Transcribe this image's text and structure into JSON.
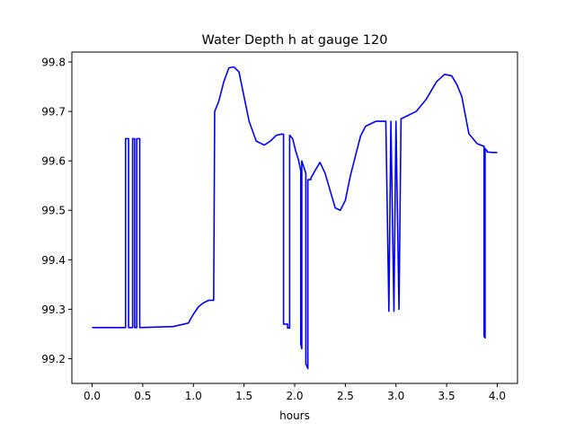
{
  "chart_data": {
    "type": "line",
    "title": "Water Depth h at gauge 120",
    "xlabel": "hours",
    "ylabel": "",
    "xlim": [
      -0.2,
      4.2
    ],
    "ylim": [
      99.15,
      99.82
    ],
    "xticks": [
      0.0,
      0.5,
      1.0,
      1.5,
      2.0,
      2.5,
      3.0,
      3.5,
      4.0
    ],
    "xtick_labels": [
      "0.0",
      "0.5",
      "1.0",
      "1.5",
      "2.0",
      "2.5",
      "3.0",
      "3.5",
      "4.0"
    ],
    "yticks": [
      99.2,
      99.3,
      99.4,
      99.5,
      99.6,
      99.7,
      99.8
    ],
    "ytick_labels": [
      "99.2",
      "99.3",
      "99.4",
      "99.5",
      "99.6",
      "99.7",
      "99.8"
    ],
    "grid": false,
    "legend": "none",
    "series": [
      {
        "color": "#0000ff",
        "x": [
          0.0,
          0.33,
          0.33,
          0.36,
          0.36,
          0.4,
          0.4,
          0.42,
          0.42,
          0.44,
          0.44,
          0.47,
          0.47,
          0.8,
          0.95,
          1.0,
          1.05,
          1.1,
          1.15,
          1.2,
          1.21,
          1.21,
          1.25,
          1.3,
          1.35,
          1.4,
          1.45,
          1.48,
          1.55,
          1.62,
          1.7,
          1.76,
          1.82,
          1.87,
          1.89,
          1.89,
          1.93,
          1.93,
          1.95,
          1.95,
          1.98,
          2.01,
          2.04,
          2.06,
          2.06,
          2.07,
          2.07,
          2.11,
          2.11,
          2.13,
          2.13,
          2.16,
          2.16,
          2.2,
          2.25,
          2.3,
          2.35,
          2.4,
          2.45,
          2.5,
          2.55,
          2.6,
          2.65,
          2.7,
          2.8,
          2.9,
          2.93,
          2.93,
          2.95,
          2.95,
          2.98,
          2.98,
          3.0,
          3.0,
          3.03,
          3.03,
          3.05,
          3.1,
          3.2,
          3.3,
          3.4,
          3.48,
          3.55,
          3.6,
          3.65,
          3.72,
          3.8,
          3.86,
          3.87,
          3.87,
          3.88,
          3.88,
          3.9,
          3.9,
          3.95,
          4.0
        ],
        "y": [
          99.263,
          99.263,
          99.645,
          99.645,
          99.263,
          99.263,
          99.645,
          99.645,
          99.263,
          99.263,
          99.645,
          99.645,
          99.263,
          99.265,
          99.272,
          99.29,
          99.305,
          99.313,
          99.318,
          99.318,
          99.7,
          99.7,
          99.72,
          99.76,
          99.788,
          99.79,
          99.78,
          99.75,
          99.68,
          99.64,
          99.632,
          99.64,
          99.652,
          99.654,
          99.654,
          99.27,
          99.27,
          99.262,
          99.262,
          99.652,
          99.645,
          99.62,
          99.6,
          99.58,
          99.23,
          99.22,
          99.6,
          99.575,
          99.19,
          99.18,
          99.562,
          99.562,
          99.565,
          99.58,
          99.597,
          99.575,
          99.54,
          99.505,
          99.5,
          99.52,
          99.57,
          99.61,
          99.65,
          99.67,
          99.68,
          99.68,
          99.296,
          99.296,
          99.68,
          99.68,
          99.296,
          99.296,
          99.68,
          99.68,
          99.3,
          99.3,
          99.685,
          99.69,
          99.7,
          99.725,
          99.76,
          99.775,
          99.772,
          99.755,
          99.73,
          99.655,
          99.635,
          99.63,
          99.63,
          99.245,
          99.242,
          99.625,
          99.62,
          99.618,
          99.617,
          99.617
        ]
      }
    ]
  }
}
